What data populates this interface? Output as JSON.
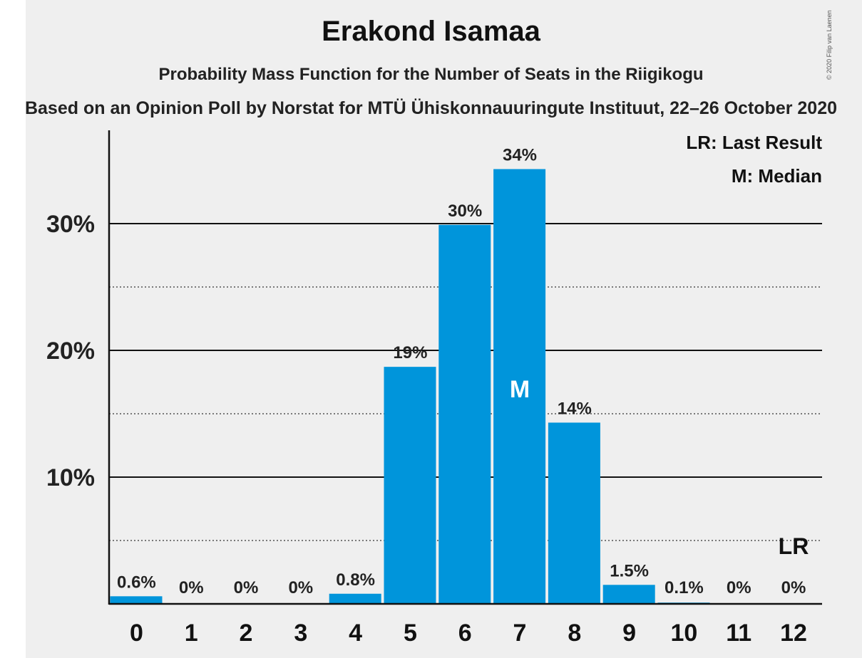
{
  "chart_data": {
    "type": "bar",
    "title": "Erakond Isamaa",
    "subtitle": "Probability Mass Function for the Number of Seats in the Riigikogu",
    "subtitle2": "Based on an Opinion Poll by Norstat for MTÜ Ühiskonnauuringute Instituut, 22–26 October 2020",
    "copyright": "© 2020 Filip van Laenen",
    "categories": [
      "0",
      "1",
      "2",
      "3",
      "4",
      "5",
      "6",
      "7",
      "8",
      "9",
      "10",
      "11",
      "12"
    ],
    "values": [
      0.6,
      0,
      0,
      0,
      0.8,
      18.7,
      29.9,
      34.3,
      14.3,
      1.5,
      0.1,
      0,
      0
    ],
    "value_labels": [
      "0.6%",
      "0%",
      "0%",
      "0%",
      "0.8%",
      "19%",
      "30%",
      "34%",
      "14%",
      "1.5%",
      "0.1%",
      "0%",
      "0%"
    ],
    "ylim": [
      0,
      37
    ],
    "yticks": [
      10,
      20,
      30
    ],
    "ytick_labels": [
      "10%",
      "20%",
      "30%"
    ],
    "minor_gridlines": [
      5,
      15,
      25
    ],
    "median_label": "M",
    "median_category": "7",
    "last_result_label": "LR",
    "last_result_category": "12",
    "legend": [
      "LR: Last Result",
      "M: Median"
    ],
    "legend_position": "top-right",
    "bar_color": "#0095db"
  }
}
